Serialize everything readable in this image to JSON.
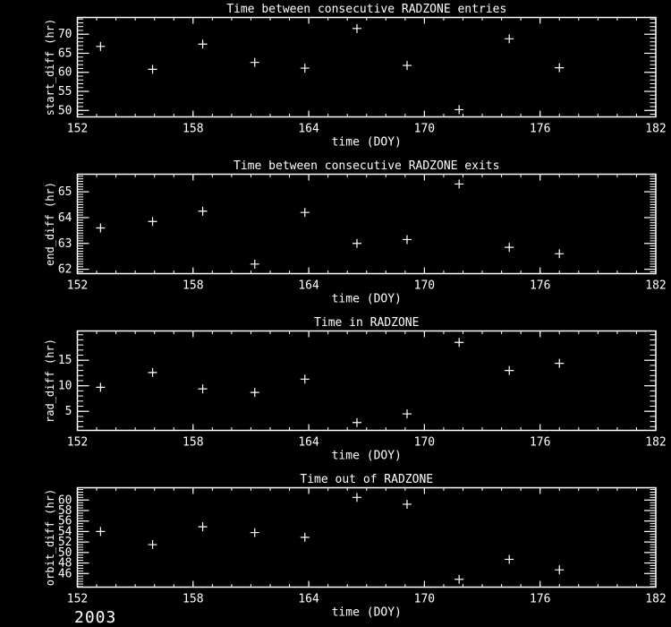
{
  "page": {
    "background": "#000000",
    "foreground": "#ffffff",
    "year_label": "2003"
  },
  "chart_data": [
    {
      "type": "scatter",
      "title": "Time between consecutive RADZONE entries",
      "xlabel": "time (DOY)",
      "ylabel": "start_diff (hr)",
      "marker": "plus",
      "marker_color": "#ffffff",
      "x": [
        153.2,
        155.9,
        158.5,
        161.2,
        163.8,
        166.5,
        169.1,
        171.8,
        174.4,
        177.0
      ],
      "y": [
        66.8,
        60.8,
        67.4,
        62.6,
        61.1,
        71.5,
        61.8,
        50.2,
        68.8,
        61.2
      ],
      "xlim": [
        152,
        182
      ],
      "ylim": [
        48.3,
        74.4
      ],
      "xticks": [
        152,
        158,
        164,
        170,
        176,
        182
      ],
      "yticks": [
        50,
        55,
        60,
        65,
        70
      ],
      "x_minor_step": 1,
      "y_minor_step": 1,
      "grid": false
    },
    {
      "type": "scatter",
      "title": "Time between consecutive RADZONE exits",
      "xlabel": "time (DOY)",
      "ylabel": "end_diff (hr)",
      "marker": "plus",
      "marker_color": "#ffffff",
      "x": [
        153.2,
        155.9,
        158.5,
        161.2,
        163.8,
        166.5,
        169.1,
        171.8,
        174.4,
        177.0
      ],
      "y": [
        63.6,
        63.85,
        64.25,
        62.2,
        64.2,
        63.0,
        63.15,
        65.3,
        62.85,
        62.6
      ],
      "xlim": [
        152,
        182
      ],
      "ylim": [
        61.83,
        65.68
      ],
      "xticks": [
        152,
        158,
        164,
        170,
        176,
        182
      ],
      "yticks": [
        62,
        63,
        64,
        65
      ],
      "x_minor_step": 1,
      "y_minor_step": 0.1,
      "grid": false
    },
    {
      "type": "scatter",
      "title": "Time in RADZONE",
      "xlabel": "time (DOY)",
      "ylabel": "rad_diff (hr)",
      "marker": "plus",
      "marker_color": "#ffffff",
      "x": [
        153.2,
        155.9,
        158.5,
        161.2,
        163.8,
        166.5,
        169.1,
        171.8,
        174.4,
        177.0
      ],
      "y": [
        9.7,
        12.6,
        9.4,
        8.7,
        11.3,
        2.8,
        4.5,
        18.5,
        13.0,
        14.4
      ],
      "xlim": [
        152,
        182
      ],
      "ylim": [
        1.26,
        20.74
      ],
      "xticks": [
        152,
        158,
        164,
        170,
        176,
        182
      ],
      "yticks": [
        5,
        10,
        15
      ],
      "x_minor_step": 1,
      "y_minor_step": 1,
      "grid": false
    },
    {
      "type": "scatter",
      "title": "Time out of RADZONE",
      "xlabel": "time (DOY)",
      "ylabel": "orbit_diff (hr)",
      "marker": "plus",
      "marker_color": "#ffffff",
      "x": [
        153.2,
        155.9,
        158.5,
        161.2,
        163.8,
        166.5,
        169.1,
        171.8,
        174.4,
        177.0
      ],
      "y": [
        54.0,
        51.5,
        54.9,
        53.8,
        52.9,
        60.5,
        59.2,
        44.9,
        48.7,
        46.7
      ],
      "xlim": [
        152,
        182
      ],
      "ylim": [
        43.4,
        62.35
      ],
      "xticks": [
        152,
        158,
        164,
        170,
        176,
        182
      ],
      "yticks": [
        46,
        48,
        50,
        52,
        54,
        56,
        58,
        60
      ],
      "x_minor_step": 1,
      "y_minor_step": 0.5,
      "grid": false
    }
  ]
}
